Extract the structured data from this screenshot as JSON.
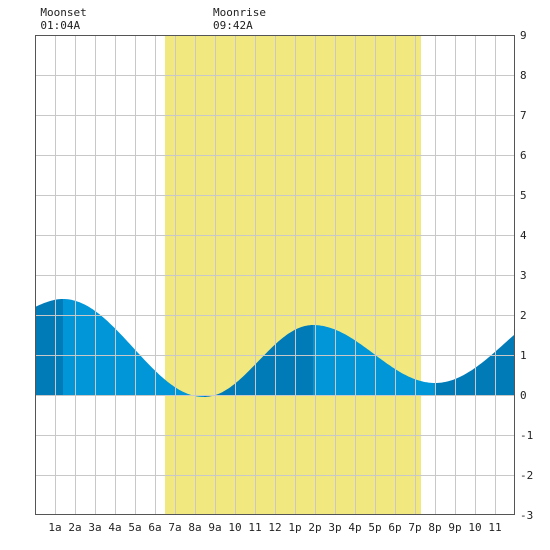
{
  "moon_events": [
    {
      "label": "Moonset",
      "time": "01:04A",
      "hour": 1.07
    },
    {
      "label": "Moonrise",
      "time": "09:42A",
      "hour": 9.7
    }
  ],
  "colors": {
    "daylight": "#f2e880",
    "tide_fill": "#0096d8",
    "tide_fill_dark": "#007bb8",
    "grid": "#c8c8c8",
    "frame": "#555555"
  },
  "chart_data": {
    "type": "area",
    "title": "",
    "xlabel": "",
    "ylabel": "",
    "xlim": [
      0,
      24
    ],
    "ylim": [
      -3,
      9
    ],
    "grid": true,
    "daylight_hours": [
      6.5,
      19.3
    ],
    "x_ticks": [
      {
        "hour": 1,
        "label": "1a"
      },
      {
        "hour": 2,
        "label": "2a"
      },
      {
        "hour": 3,
        "label": "3a"
      },
      {
        "hour": 4,
        "label": "4a"
      },
      {
        "hour": 5,
        "label": "5a"
      },
      {
        "hour": 6,
        "label": "6a"
      },
      {
        "hour": 7,
        "label": "7a"
      },
      {
        "hour": 8,
        "label": "8a"
      },
      {
        "hour": 9,
        "label": "9a"
      },
      {
        "hour": 10,
        "label": "10"
      },
      {
        "hour": 11,
        "label": "11"
      },
      {
        "hour": 12,
        "label": "12"
      },
      {
        "hour": 13,
        "label": "1p"
      },
      {
        "hour": 14,
        "label": "2p"
      },
      {
        "hour": 15,
        "label": "3p"
      },
      {
        "hour": 16,
        "label": "4p"
      },
      {
        "hour": 17,
        "label": "5p"
      },
      {
        "hour": 18,
        "label": "6p"
      },
      {
        "hour": 19,
        "label": "7p"
      },
      {
        "hour": 20,
        "label": "8p"
      },
      {
        "hour": 21,
        "label": "9p"
      },
      {
        "hour": 22,
        "label": "10"
      },
      {
        "hour": 23,
        "label": "11"
      }
    ],
    "y_ticks": [
      9,
      8,
      7,
      6,
      5,
      4,
      3,
      2,
      1,
      0,
      -1,
      -2,
      -3
    ],
    "tide_extremes": [
      {
        "type": "high",
        "hour": 1.4,
        "height": 2.4
      },
      {
        "type": "low",
        "hour": 8.45,
        "height": -0.05
      },
      {
        "type": "high",
        "hour": 13.9,
        "height": 1.75
      },
      {
        "type": "low",
        "hour": 20.0,
        "height": 0.3
      },
      {
        "type": "high",
        "hour": 27.0,
        "height": 2.3
      }
    ],
    "tide_start_height": 2.2
  }
}
